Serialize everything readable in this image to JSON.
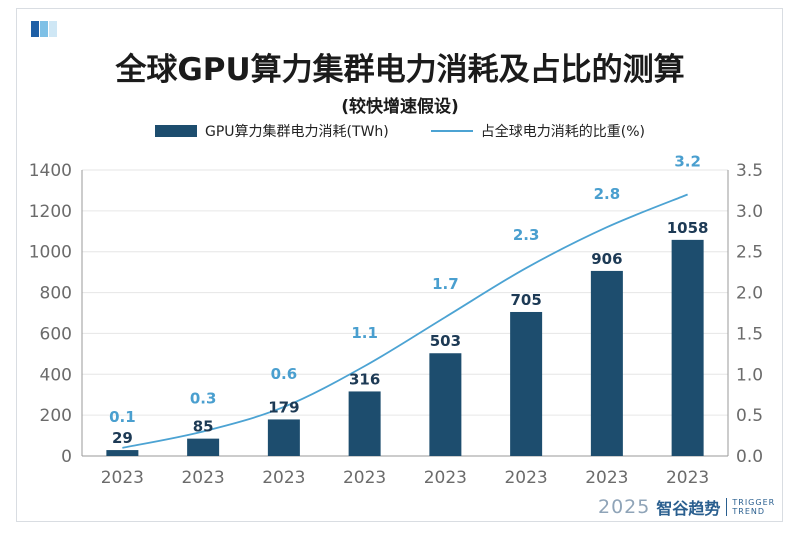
{
  "header": {
    "title": "全球GPU算力集群电力消耗及占比的测算",
    "subtitle": "(较快增速假设)"
  },
  "legend": {
    "bar_label": "GPU算力集群电力消耗(TWh)",
    "line_label": "占全球电力消耗的比重(%)"
  },
  "brand": {
    "year": "2025",
    "name": "智谷趋势",
    "en_line1": "TRIGGER",
    "en_line2": "TREND"
  },
  "colors": {
    "bar": "#1d4d6e",
    "line": "#4ca3d3",
    "bar_label": "#1d3a55",
    "line_label": "#4a9fcf",
    "axis_text": "#6b6b6b",
    "grid": "#e6e6e6"
  },
  "chart_data": {
    "type": "bar",
    "categories": [
      "2023",
      "2023",
      "2023",
      "2023",
      "2023",
      "2023",
      "2023",
      "2023"
    ],
    "series": [
      {
        "name": "GPU算力集群电力消耗(TWh)",
        "type": "bar",
        "axis": "left",
        "values": [
          29,
          85,
          179,
          316,
          503,
          705,
          906,
          1058
        ]
      },
      {
        "name": "占全球电力消耗的比重(%)",
        "type": "line",
        "axis": "right",
        "values": [
          0.1,
          0.3,
          0.6,
          1.1,
          1.7,
          2.3,
          2.8,
          3.2
        ]
      }
    ],
    "bar_value_labels": [
      "29",
      "85",
      "179",
      "316",
      "503",
      "705",
      "906",
      "1058"
    ],
    "line_value_labels": [
      "0.1",
      "0.3",
      "0.6",
      "1.1",
      "1.7",
      "2.3",
      "2.8",
      "3.2"
    ],
    "y_left": {
      "min": 0,
      "max": 1400,
      "ticks": [
        "0",
        "200",
        "400",
        "600",
        "800",
        "1000",
        "1200",
        "1400"
      ]
    },
    "y_right": {
      "min": 0,
      "max": 3.5,
      "ticks": [
        "0.0",
        "0.5",
        "1.0",
        "1.5",
        "2.0",
        "2.5",
        "3.0",
        "3.5"
      ]
    },
    "grid": true,
    "legend_position": "top"
  }
}
